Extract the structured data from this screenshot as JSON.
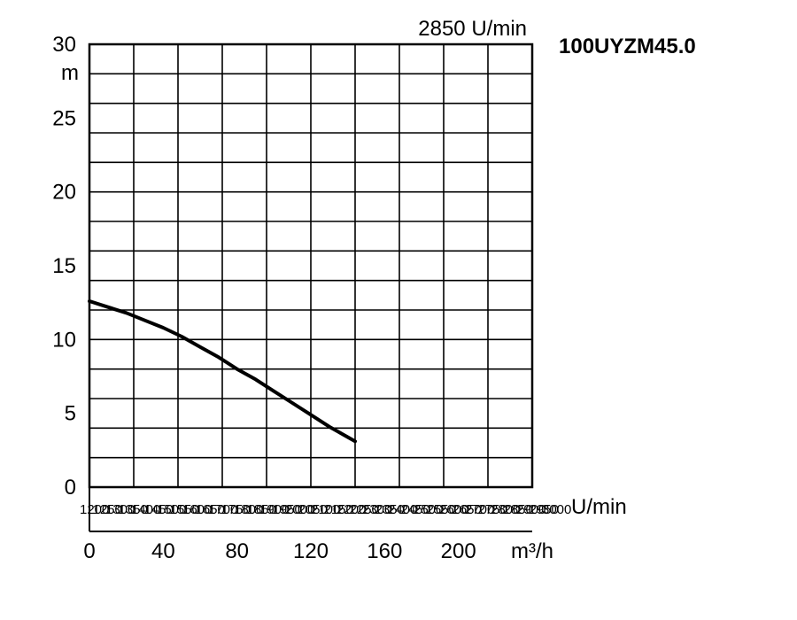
{
  "chart_data": {
    "type": "line",
    "title": "100UYZM45.0",
    "speed_label": "2850 U/min",
    "y_unit": "m",
    "x_unit": "m³/h",
    "rpm_axis_label": "U/min",
    "ylim": [
      0,
      30
    ],
    "xlim": [
      0,
      240
    ],
    "y_ticks": [
      "0",
      "5",
      "10",
      "15",
      "20",
      "25",
      "30"
    ],
    "x_ticks": [
      "0",
      "40",
      "80",
      "120",
      "160",
      "200"
    ],
    "rpm_ticks": [
      "1200",
      "1250",
      "1300",
      "1350",
      "1400",
      "1450",
      "1500",
      "1550",
      "1600",
      "1650",
      "1700",
      "1750",
      "1800",
      "1850",
      "1900",
      "1950",
      "2000",
      "2050",
      "2100",
      "2150",
      "2200",
      "2250",
      "2300",
      "2350",
      "2400",
      "2450",
      "2500",
      "2550",
      "2600",
      "2650",
      "2700",
      "2750",
      "2800",
      "2850",
      "2900",
      "2950",
      "3000"
    ],
    "grid": true,
    "series": [
      {
        "x": [
          0,
          10,
          20,
          30,
          40,
          50,
          60,
          70,
          80,
          90,
          100,
          110,
          120,
          130,
          144
        ],
        "y": [
          12.6,
          12.2,
          11.8,
          11.3,
          10.8,
          10.2,
          9.5,
          8.8,
          8.0,
          7.3,
          6.5,
          5.7,
          4.9,
          4.1,
          3.1
        ]
      }
    ]
  }
}
